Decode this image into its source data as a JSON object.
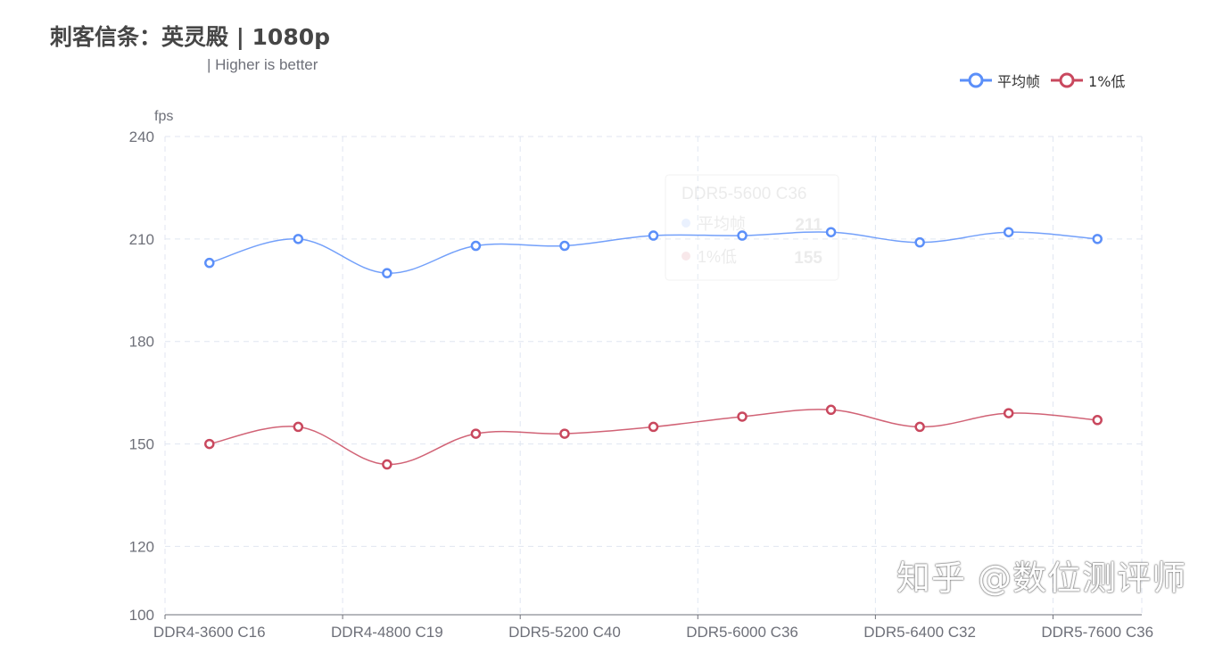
{
  "chart_data": {
    "type": "line",
    "title": "刺客信条：英灵殿 | 1080p",
    "subtitle": "| Higher is better",
    "ylabel": "fps",
    "xlabel": "",
    "ylim": [
      100,
      240
    ],
    "yticks": [
      100,
      120,
      150,
      180,
      210,
      240
    ],
    "grid": true,
    "legend_position": "top-right",
    "categories": [
      "DDR4-3600 C16",
      "",
      "DDR4-4800 C19",
      "",
      "DDR5-5200 C40",
      "",
      "DDR5-6000 C36",
      "",
      "DDR5-6400 C32",
      "",
      "DDR5-7600 C36"
    ],
    "series": [
      {
        "name": "平均帧",
        "color": "#5b8ff9",
        "values": [
          203,
          210,
          200,
          208,
          208,
          211,
          211,
          212,
          209,
          212,
          210
        ]
      },
      {
        "name": "1%低",
        "color": "#c9485e",
        "values": [
          150,
          155,
          144,
          153,
          153,
          155,
          158,
          160,
          155,
          159,
          157
        ]
      }
    ],
    "tooltip": {
      "category": "DDR5-5600 C36",
      "rows": [
        {
          "name": "平均帧",
          "value": "211"
        },
        {
          "name": "1%低",
          "value": "155"
        }
      ]
    }
  },
  "watermark": "知乎 @数位测评师"
}
